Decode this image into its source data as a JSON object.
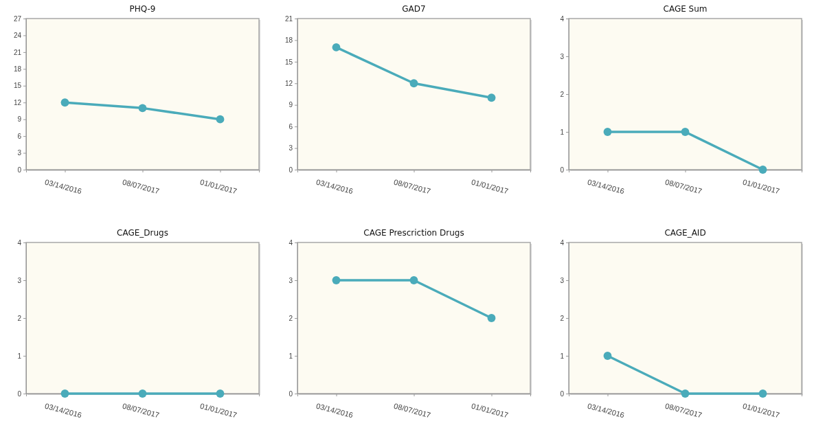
{
  "chart_data": [
    {
      "type": "line",
      "title": "PHQ-9",
      "categories": [
        "03/14/2016",
        "08/07/2017",
        "01/01/2017"
      ],
      "values": [
        12,
        11,
        9
      ],
      "color": "#4aabba",
      "ylim": [
        0,
        27
      ],
      "yticks": [
        0,
        3,
        6,
        9,
        12,
        15,
        18,
        21,
        24,
        27
      ],
      "marker": "circle"
    },
    {
      "type": "line",
      "title": "GAD7",
      "categories": [
        "03/14/2016",
        "08/07/2017",
        "01/01/2017"
      ],
      "values": [
        17,
        12,
        10
      ],
      "color": "#4aabba",
      "ylim": [
        0,
        21
      ],
      "yticks": [
        0,
        3,
        6,
        9,
        12,
        15,
        18,
        21
      ],
      "marker": "circle"
    },
    {
      "type": "line",
      "title": "CAGE Sum",
      "categories": [
        "03/14/2016",
        "08/07/2017",
        "01/01/2017"
      ],
      "values": [
        1,
        1,
        0
      ],
      "color": "#4aabba",
      "ylim": [
        0,
        4
      ],
      "yticks": [
        0,
        1,
        2,
        3,
        4
      ],
      "marker": "circle"
    },
    {
      "type": "line",
      "title": "CAGE_Drugs",
      "categories": [
        "03/14/2016",
        "08/07/2017",
        "01/01/2017"
      ],
      "values": [
        0,
        0,
        0
      ],
      "color": "#4aabba",
      "ylim": [
        0,
        4
      ],
      "yticks": [
        0,
        1,
        2,
        3,
        4
      ],
      "marker": "circle"
    },
    {
      "type": "line",
      "title": "CAGE Prescriction Drugs",
      "categories": [
        "03/14/2016",
        "08/07/2017",
        "01/01/2017"
      ],
      "values": [
        3,
        3,
        2
      ],
      "color": "#4aabba",
      "ylim": [
        0,
        4
      ],
      "yticks": [
        0,
        1,
        2,
        3,
        4
      ],
      "marker": "circle"
    },
    {
      "type": "line",
      "title": "CAGE_AID",
      "categories": [
        "03/14/2016",
        "08/07/2017",
        "01/01/2017"
      ],
      "values": [
        1,
        0,
        0
      ],
      "color": "#4aabba",
      "ylim": [
        0,
        4
      ],
      "yticks": [
        0,
        1,
        2,
        3,
        4
      ],
      "marker": "circle"
    }
  ]
}
